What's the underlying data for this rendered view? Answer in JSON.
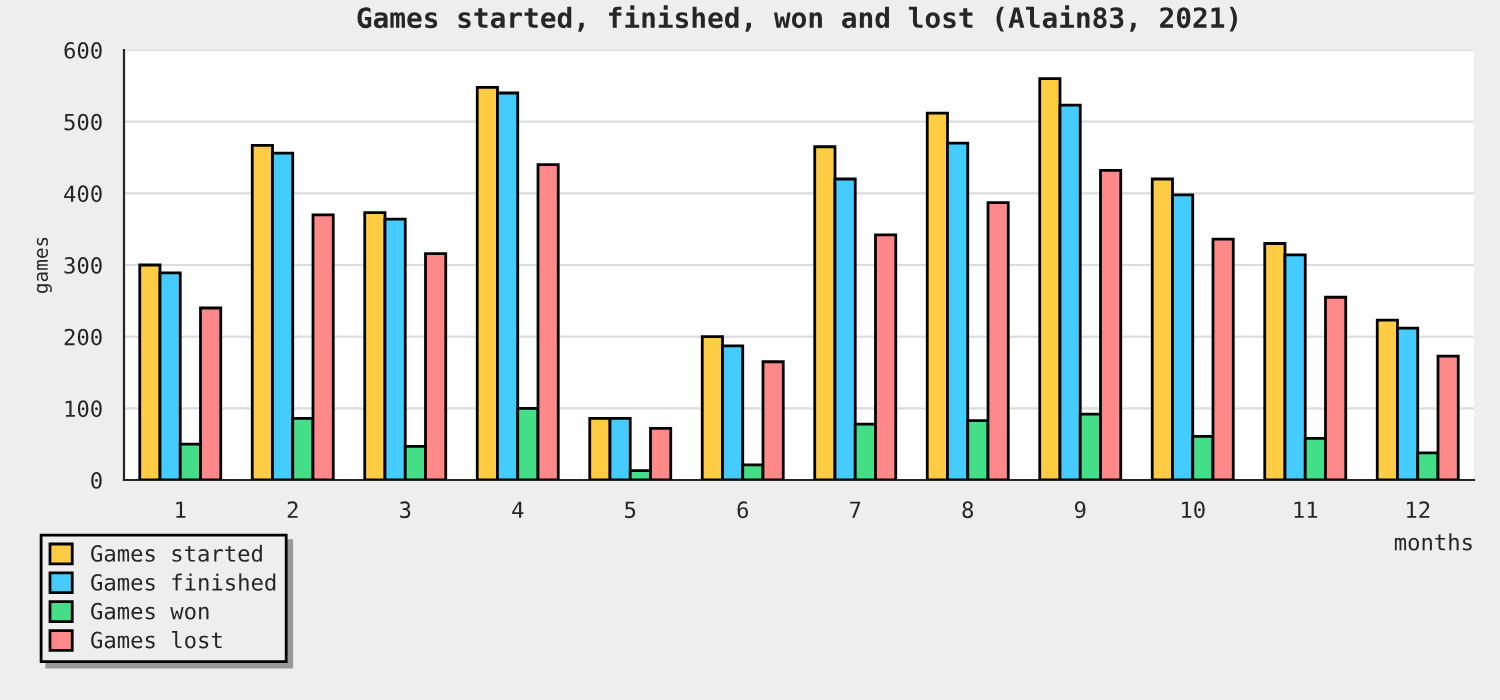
{
  "chart_data": {
    "type": "bar",
    "title": "Games started, finished, won and lost (Alain83, 2021)",
    "xlabel": "months",
    "ylabel": "games",
    "categories": [
      "1",
      "2",
      "3",
      "4",
      "5",
      "6",
      "7",
      "8",
      "9",
      "10",
      "11",
      "12"
    ],
    "series": [
      {
        "name": "Games started",
        "color": "#ffcc44",
        "values": [
          300,
          467,
          373,
          548,
          86,
          200,
          465,
          512,
          560,
          420,
          330,
          223
        ]
      },
      {
        "name": "Games finished",
        "color": "#44ccff",
        "values": [
          289,
          456,
          364,
          540,
          86,
          187,
          420,
          470,
          523,
          398,
          314,
          212
        ]
      },
      {
        "name": "Games won",
        "color": "#44dd88",
        "values": [
          50,
          86,
          47,
          100,
          13,
          21,
          78,
          83,
          92,
          61,
          58,
          38
        ]
      },
      {
        "name": "Games lost",
        "color": "#ff8888",
        "values": [
          240,
          370,
          316,
          440,
          72,
          165,
          342,
          387,
          432,
          336,
          255,
          173
        ]
      }
    ],
    "ylim": [
      0,
      600
    ],
    "yticks": [
      0,
      100,
      200,
      300,
      400,
      500,
      600
    ],
    "grid": "y",
    "legend": "bottom left"
  }
}
